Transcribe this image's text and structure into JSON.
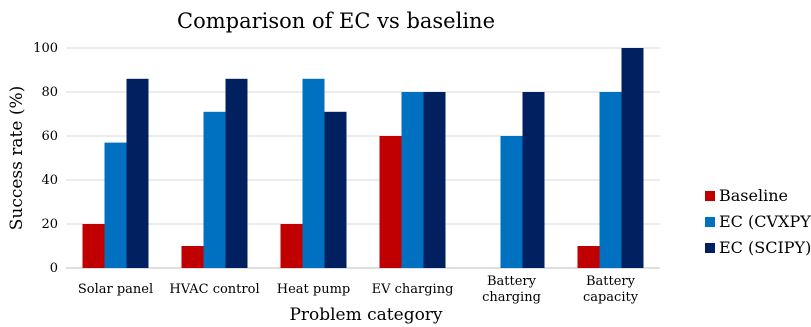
{
  "chart_data": {
    "type": "bar",
    "title": "Comparison of EC vs baseline",
    "xlabel": "Problem category",
    "ylabel": "Success rate (%)",
    "ylim": [
      0,
      100
    ],
    "yticks": [
      0,
      20,
      40,
      60,
      80,
      100
    ],
    "grid": true,
    "legend_position": "right",
    "categories": [
      [
        "Solar panel"
      ],
      [
        "HVAC control"
      ],
      [
        "Heat pump"
      ],
      [
        "EV charging"
      ],
      [
        "Battery",
        "charging"
      ],
      [
        "Battery",
        "capacity"
      ]
    ],
    "series": [
      {
        "name": "Baseline",
        "color": "#c00000",
        "values": [
          20,
          10,
          20,
          60,
          0,
          10
        ]
      },
      {
        "name": "EC (CVXPY)",
        "color": "#0070c0",
        "values": [
          57,
          71,
          86,
          80,
          60,
          80
        ]
      },
      {
        "name": "EC (SCIPY)",
        "color": "#002060",
        "values": [
          86,
          86,
          71,
          80,
          80,
          100
        ]
      }
    ]
  }
}
